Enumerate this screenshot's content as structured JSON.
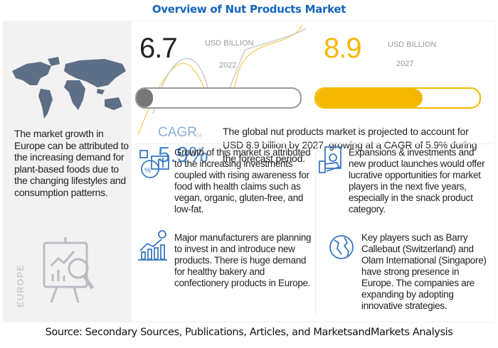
{
  "title": "Overview of Nut Products Market",
  "market_2022": {
    "value": "6.7",
    "unit": "USD BILLION",
    "year": "2022",
    "bar_fill": 0.1
  },
  "market_2027": {
    "value": "8.9",
    "unit": "USD BILLION",
    "year": "2027",
    "bar_fill": 0.65
  },
  "cagr": {
    "label": "CAGR",
    "of": "of",
    "value": "5.9%"
  },
  "summary": "The global nut products market is projected to account for USD 8.9 billion  by 2027, growing at a CAGR of 5.9% during the forecast period.",
  "region": {
    "label": "EUROPE",
    "text": "The market growth in Europe can be attributed to the increasing demand for plant-based foods due to the changing lifestyles and consumption patterns."
  },
  "insights": [
    {
      "icon": "analytics-icon",
      "text": "Growth of this market is attributed to the increasing investments coupled with rising awareness for food with health claims such as vegan, organic, gluten-free, and low-fat."
    },
    {
      "icon": "money-hand-icon",
      "text": "Expansions & investments and new product launches would offer lucrative opportunities for market players in the next five years, especially in the snack product category."
    },
    {
      "icon": "growth-chart-icon",
      "text": "Major manufacturers are planning to invest in and introduce new products. There is huge demand for healthy bakery and confectionery products in Europe."
    },
    {
      "icon": "globe-icon",
      "text": "Key players such as Barry Callebaut (Switzerland) and Olam International (Singapore) have strong presence in Europe. The companies are expanding by adopting innovative strategies."
    }
  ],
  "source": "Source: Secondary Sources, Publications, Articles, and MarketsandMarkets Analysis",
  "colors": {
    "title": "#1565c0",
    "yellow": "#f5b800",
    "cagr": "#6fa0d8",
    "icon": "#3a78c2"
  }
}
